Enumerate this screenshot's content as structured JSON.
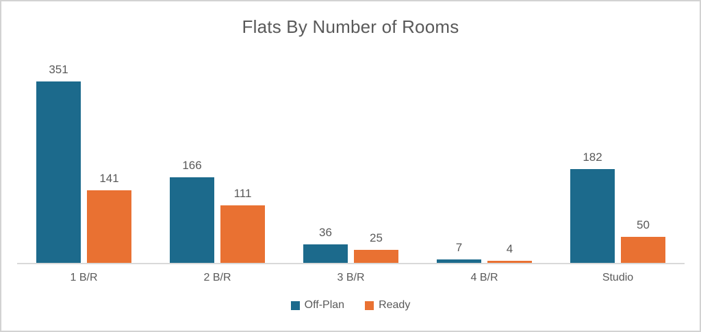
{
  "chart_data": {
    "type": "bar",
    "title": "Flats By Number of Rooms",
    "categories": [
      "1 B/R",
      "2 B/R",
      "3 B/R",
      "4 B/R",
      "Studio"
    ],
    "series": [
      {
        "name": "Off-Plan",
        "color": "#1C6A8C",
        "values": [
          351,
          166,
          36,
          7,
          182
        ]
      },
      {
        "name": "Ready",
        "color": "#E97132",
        "values": [
          141,
          111,
          25,
          4,
          50
        ]
      }
    ],
    "ylim": [
      0,
      400
    ],
    "grid": false,
    "y_axis_visible": false,
    "data_labels": true,
    "legend_position": "bottom"
  },
  "colors": {
    "title_text": "#595959",
    "label_text": "#595959",
    "axis_line": "#D9D9D9",
    "frame_border": "#D2D2D2",
    "background": "#FFFFFF"
  }
}
